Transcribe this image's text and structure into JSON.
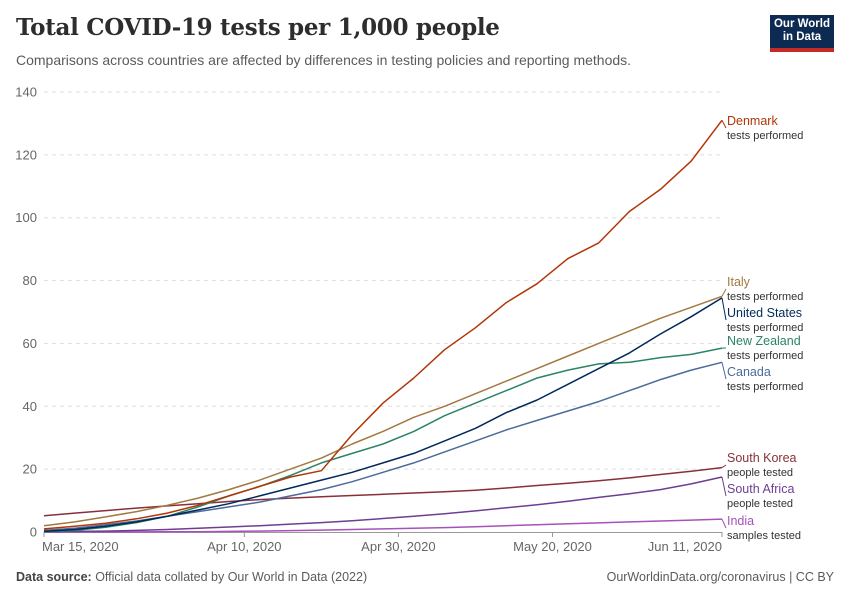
{
  "header": {
    "title": "Total COVID-19 tests per 1,000 people",
    "subtitle": "Comparisons across countries are affected by differences in testing policies and reporting methods.",
    "logo_line1": "Our World",
    "logo_line2": "in Data"
  },
  "footer": {
    "source_label": "Data source:",
    "source_text": " Official data collated by Our World in Data (2022)",
    "right_text": "OurWorldinData.org/coronavirus | CC BY"
  },
  "chart_data": {
    "type": "line",
    "title": "Total COVID-19 tests per 1,000 people",
    "xlabel": "",
    "ylabel": "",
    "x_start": "2020-03-15",
    "x_end": "2020-06-11",
    "x_unit": "days since Mar 15, 2020",
    "xlim": [
      0,
      88
    ],
    "ylim": [
      0,
      140
    ],
    "yticks": [
      0,
      20,
      40,
      60,
      80,
      100,
      120,
      140
    ],
    "xticks": [
      {
        "day": 0,
        "label": "Mar 15, 2020"
      },
      {
        "day": 26,
        "label": "Apr 10, 2020"
      },
      {
        "day": 46,
        "label": "Apr 30, 2020"
      },
      {
        "day": 66,
        "label": "May 20, 2020"
      },
      {
        "day": 88,
        "label": "Jun 11, 2020"
      }
    ],
    "grid": "horizontal-dashed",
    "legend": "right, inline labels",
    "x": [
      0,
      4,
      8,
      12,
      16,
      20,
      24,
      28,
      32,
      36,
      40,
      44,
      48,
      52,
      56,
      60,
      64,
      68,
      72,
      76,
      80,
      84,
      88
    ],
    "series": [
      {
        "name": "Denmark",
        "sub": "tests performed",
        "color": "#b13507",
        "values": [
          1.0,
          1.8,
          2.8,
          4.2,
          6.0,
          8.5,
          11.5,
          14.5,
          17.5,
          19.5,
          31,
          41,
          49,
          58,
          65,
          73,
          79,
          87,
          92,
          102,
          109,
          118,
          131
        ]
      },
      {
        "name": "Italy",
        "sub": "tests performed",
        "color": "#a2793f",
        "values": [
          2.0,
          3.2,
          4.8,
          6.5,
          8.5,
          10.8,
          13.5,
          16.5,
          20,
          23.5,
          28,
          32,
          36.5,
          40,
          44,
          48,
          52,
          56,
          60,
          64,
          68,
          71.5,
          75
        ]
      },
      {
        "name": "United States",
        "sub": "tests performed",
        "color": "#00295b",
        "values": [
          0.2,
          0.8,
          1.8,
          3.2,
          5.0,
          7.0,
          9.0,
          11.5,
          14,
          16.5,
          19,
          22,
          25,
          29,
          33,
          38,
          42,
          47,
          52,
          57,
          63,
          68.5,
          74.5
        ]
      },
      {
        "name": "New Zealand",
        "sub": "tests performed",
        "color": "#2c8465",
        "values": [
          0.1,
          0.5,
          1.5,
          3.0,
          5.0,
          8.0,
          11.5,
          14.5,
          18,
          22,
          25,
          28,
          32,
          37,
          41,
          45,
          49,
          51.5,
          53.5,
          54,
          55.5,
          56.5,
          58.5
        ]
      },
      {
        "name": "Canada",
        "sub": "tests performed",
        "color": "#4c6a9c",
        "values": [
          0.5,
          1.2,
          2.3,
          3.5,
          5.0,
          6.5,
          8.0,
          9.5,
          11.5,
          13.5,
          16,
          19,
          22,
          25.5,
          29,
          32.5,
          35.5,
          38.5,
          41.5,
          45,
          48.5,
          51.5,
          54
        ]
      },
      {
        "name": "South Korea",
        "sub": "people tested",
        "color": "#883039",
        "values": [
          5.2,
          6.0,
          6.8,
          7.6,
          8.3,
          9.0,
          9.7,
          10.3,
          10.8,
          11.2,
          11.6,
          12.0,
          12.4,
          12.8,
          13.3,
          14.0,
          14.8,
          15.5,
          16.3,
          17.2,
          18.3,
          19.3,
          20.5
        ]
      },
      {
        "name": "South Africa",
        "sub": "people tested",
        "color": "#6d3e91",
        "values": [
          0.1,
          0.2,
          0.3,
          0.5,
          0.8,
          1.2,
          1.6,
          2.0,
          2.5,
          3.0,
          3.6,
          4.3,
          5.0,
          5.8,
          6.7,
          7.7,
          8.7,
          9.8,
          11.0,
          12.2,
          13.5,
          15.3,
          17.5
        ]
      },
      {
        "name": "India",
        "sub": "samples tested",
        "color": "#a652ba",
        "values": [
          0.0,
          0.0,
          0.01,
          0.02,
          0.05,
          0.1,
          0.2,
          0.3,
          0.45,
          0.6,
          0.8,
          1.0,
          1.2,
          1.4,
          1.7,
          2.0,
          2.3,
          2.6,
          2.9,
          3.2,
          3.5,
          3.8,
          4.1
        ]
      }
    ]
  }
}
